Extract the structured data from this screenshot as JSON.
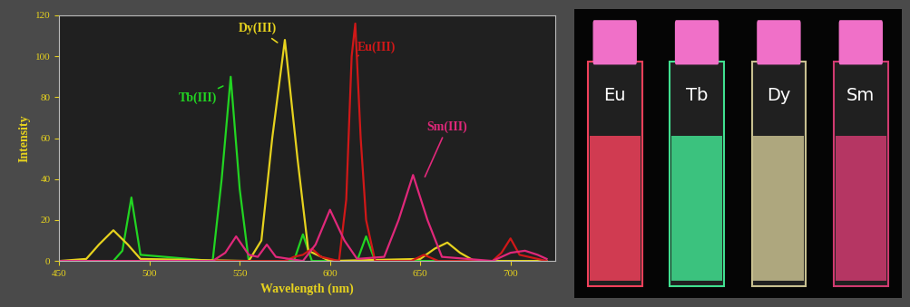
{
  "chart_data": {
    "type": "line",
    "x_label": "Wavelength (nm)",
    "y_label": "Intensity",
    "xlim": [
      450,
      725
    ],
    "xticks": [
      450,
      500,
      550,
      600,
      650,
      700
    ],
    "ylim": [
      0,
      120
    ],
    "yticks": [
      0,
      20,
      40,
      60,
      80,
      100,
      120
    ],
    "grid": false,
    "series": [
      {
        "name": "Tb(III)",
        "color": "#22d422",
        "x": [
          450,
          480,
          485,
          490,
          495,
          535,
          540,
          545,
          550,
          555,
          580,
          585,
          590,
          615,
          620,
          625,
          650,
          720
        ],
        "values": [
          0,
          0,
          5,
          31,
          3,
          0,
          40,
          90,
          35,
          0,
          0,
          13,
          0,
          0,
          12,
          0,
          0,
          0
        ]
      },
      {
        "name": "Dy(III)",
        "color": "#e6d21e",
        "x": [
          450,
          465,
          472,
          480,
          488,
          495,
          555,
          562,
          568,
          575,
          582,
          588,
          600,
          650,
          658,
          665,
          672,
          680,
          720
        ],
        "values": [
          0,
          1,
          8,
          15,
          8,
          1,
          0,
          10,
          60,
          108,
          50,
          5,
          0,
          1,
          6,
          9,
          4,
          0,
          0
        ]
      },
      {
        "name": "Eu(III)",
        "color": "#d01818",
        "x": [
          450,
          575,
          580,
          585,
          590,
          595,
          605,
          609,
          612,
          614,
          617,
          620,
          625,
          645,
          652,
          660,
          690,
          695,
          700,
          705,
          720
        ],
        "values": [
          0,
          0,
          2,
          3,
          6,
          2,
          0,
          30,
          100,
          116,
          60,
          20,
          0,
          0,
          3,
          0,
          0,
          4,
          11,
          3,
          0
        ]
      },
      {
        "name": "Sm(III)",
        "color": "#e0287a",
        "x": [
          450,
          535,
          542,
          548,
          555,
          560,
          565,
          570,
          585,
          592,
          600,
          608,
          615,
          630,
          638,
          646,
          654,
          662,
          690,
          700,
          708,
          715,
          720
        ],
        "values": [
          0,
          0,
          4,
          12,
          3,
          2,
          8,
          2,
          0,
          8,
          25,
          10,
          1,
          2,
          20,
          42,
          20,
          2,
          0,
          4,
          5,
          3,
          1
        ]
      }
    ]
  },
  "photo": {
    "vials": [
      {
        "label": "Eu",
        "color": "#f0405a"
      },
      {
        "label": "Tb",
        "color": "#40e090"
      },
      {
        "label": "Dy",
        "color": "#c8c090"
      },
      {
        "label": "Sm",
        "color": "#d03a70"
      }
    ]
  }
}
